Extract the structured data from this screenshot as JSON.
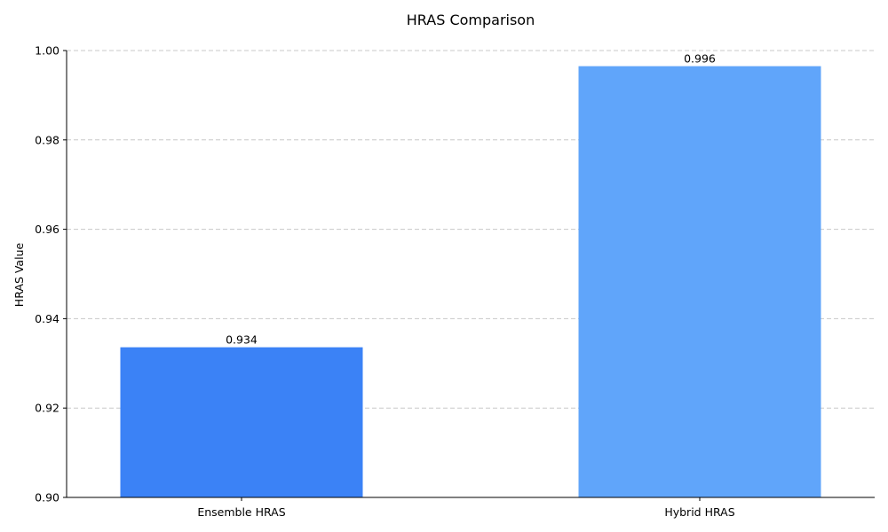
{
  "chart_data": {
    "type": "bar",
    "title": "HRAS Comparison",
    "xlabel": "",
    "ylabel": "HRAS Value",
    "categories": [
      "Ensemble HRAS",
      "Hybrid HRAS"
    ],
    "values": [
      0.9336,
      0.9965
    ],
    "value_labels": [
      "0.934",
      "0.996"
    ],
    "colors": [
      "#3b82f6",
      "#60a5fa"
    ],
    "ylim": [
      0.9,
      1.0
    ],
    "yticks": [
      0.9,
      0.92,
      0.94,
      0.96,
      0.98,
      1.0
    ],
    "ytick_labels": [
      "0.90",
      "0.92",
      "0.94",
      "0.96",
      "0.98",
      "1.00"
    ],
    "grid": "horizontal dashed",
    "legend": "none"
  }
}
